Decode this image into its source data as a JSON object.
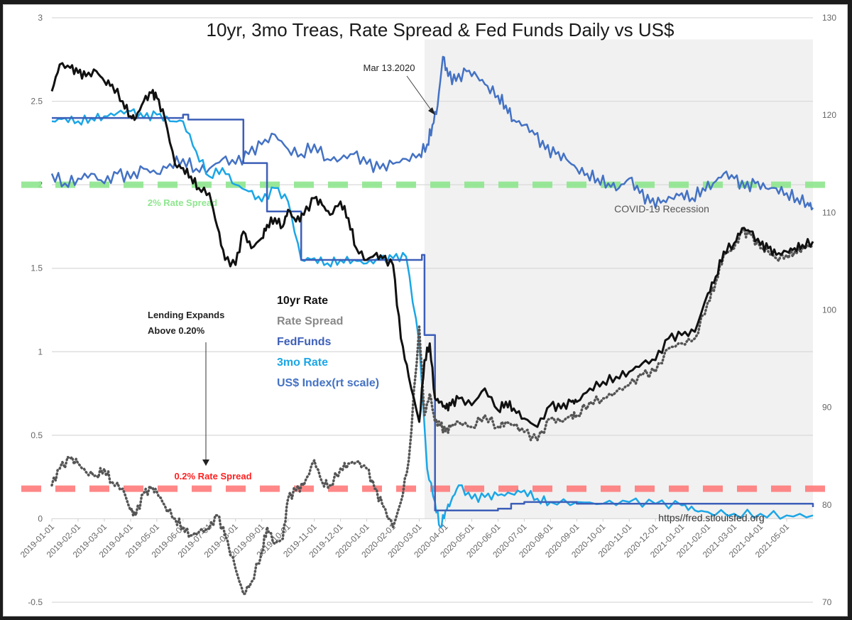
{
  "chart_data": {
    "type": "line",
    "title": "10yr, 3mo Treas, Rate Spread & Fed Funds Daily vs US$",
    "xlabel": "",
    "ylabel_left": "",
    "ylabel_right": "",
    "ylim_left": [
      -0.5,
      3
    ],
    "ylim_right": [
      70,
      130
    ],
    "left_ticks": [
      "3",
      "2.5",
      "2",
      "1.5",
      "1",
      "0.5",
      "0",
      "-0.5"
    ],
    "left_tick_values": [
      3,
      2.5,
      2,
      1.5,
      1,
      0.5,
      0,
      -0.5
    ],
    "right_ticks": [
      "130",
      "120",
      "110",
      "100",
      "90",
      "80",
      "70"
    ],
    "right_tick_values": [
      130,
      120,
      110,
      100,
      90,
      80,
      70
    ],
    "grid": true,
    "x_tick_labels": [
      "2019-01-01",
      "2019-02-01",
      "2019-03-01",
      "2019-04-01",
      "2019-05-01",
      "2019-06-01",
      "2019-07-01",
      "2019-08-01",
      "2019-09-01",
      "2019-10-01",
      "2019-11-01",
      "2019-12-01",
      "2020-01-01",
      "2020-02-01",
      "2020-03-01",
      "2020-04-01",
      "2020-05-01",
      "2020-06-01",
      "2020-07-01",
      "2020-08-01",
      "2020-09-01",
      "2020-10-01",
      "2020-11-01",
      "2020-12-01",
      "2021-01-01",
      "2021-02-01",
      "2021-03-01",
      "2021-04-01",
      "2021-05-01"
    ],
    "x_range_months": [
      0,
      29
    ],
    "recession_shading": {
      "label": "COVID-19 Recession",
      "start_month": 14.2,
      "end_month": 29.0,
      "color": "#f1f1f1"
    },
    "reference_lines": [
      {
        "name": "2% Rate Spread",
        "value": 2.0,
        "color": "#8ee68e",
        "label_color": "#8ee68e"
      },
      {
        "name": "0.2% Rate Spread",
        "value": 0.18,
        "color": "#ff7b7b",
        "label_color": "#ff1f1f"
      }
    ],
    "legend": {
      "placement": "center-left",
      "entries": [
        {
          "label": "10yr Rate",
          "color": "#111111"
        },
        {
          "label": "Rate Spread",
          "color": "#888888"
        },
        {
          "label": "FedFunds",
          "color": "#3d5fb8"
        },
        {
          "label": "3mo Rate",
          "color": "#1ba6e6"
        },
        {
          "label": "US$ Index(rt scale)",
          "color": "#4472c4"
        }
      ]
    },
    "annotations": [
      {
        "text": "Mar 13.2020",
        "x_month": 14.4,
        "y_right": 120.5
      },
      {
        "text": "Lending Expands",
        "text2": "Above 0.20%",
        "x_month": 6.8,
        "y": 0.22
      },
      {
        "text": "https//fred.stlouisfed.org",
        "position": "bottom-right"
      }
    ],
    "series": [
      {
        "name": "10yr Rate",
        "axis": "left",
        "style": "line",
        "color": "#111111",
        "x": [
          0,
          0.3,
          0.7,
          1,
          1.3,
          1.7,
          2,
          2.3,
          2.7,
          3,
          3.2,
          3.5,
          3.8,
          4,
          4.3,
          4.7,
          5,
          5.3,
          5.6,
          6,
          6.3,
          6.6,
          7,
          7.3,
          7.6,
          8,
          8.2,
          8.5,
          8.8,
          9,
          9.3,
          9.6,
          10,
          10.3,
          10.6,
          11,
          11.3,
          11.6,
          12,
          12.3,
          12.6,
          13,
          13.3,
          13.6,
          14,
          14.2,
          14.4,
          14.6,
          14.8,
          15,
          15.2,
          15.5,
          16,
          16.5,
          17,
          17.3,
          17.6,
          18,
          18.5,
          19,
          19.4,
          19.8,
          20,
          20.5,
          21,
          21.5,
          22,
          22.5,
          23,
          23.5,
          24,
          24.5,
          25,
          25.3,
          25.6,
          26,
          26.3,
          26.6,
          27,
          27.3,
          27.6,
          28,
          28.3,
          28.6,
          29
        ],
        "values": [
          2.56,
          2.72,
          2.7,
          2.67,
          2.65,
          2.68,
          2.62,
          2.6,
          2.5,
          2.41,
          2.4,
          2.5,
          2.55,
          2.52,
          2.4,
          2.12,
          2.1,
          2.05,
          1.98,
          1.95,
          1.75,
          1.55,
          1.52,
          1.72,
          1.62,
          1.68,
          1.76,
          1.8,
          1.75,
          1.85,
          1.78,
          1.82,
          1.92,
          1.88,
          1.82,
          1.9,
          1.8,
          1.62,
          1.55,
          1.58,
          1.56,
          1.52,
          1.08,
          0.85,
          0.58,
          0.95,
          1.05,
          0.72,
          0.7,
          0.66,
          0.68,
          0.72,
          0.68,
          0.78,
          0.65,
          0.7,
          0.66,
          0.6,
          0.55,
          0.68,
          0.66,
          0.7,
          0.7,
          0.78,
          0.82,
          0.85,
          0.88,
          0.93,
          0.95,
          1.08,
          1.1,
          1.12,
          1.35,
          1.45,
          1.6,
          1.65,
          1.74,
          1.72,
          1.64,
          1.62,
          1.58,
          1.6,
          1.62,
          1.64,
          1.66
        ]
      },
      {
        "name": "Rate Spread",
        "axis": "left",
        "style": "dotted",
        "color": "#555555",
        "x": [
          0,
          0.3,
          0.7,
          1,
          1.3,
          1.7,
          2,
          2.3,
          2.7,
          3,
          3.2,
          3.5,
          3.8,
          4,
          4.3,
          4.7,
          5,
          5.3,
          5.6,
          6,
          6.3,
          6.6,
          7,
          7.3,
          7.6,
          8,
          8.2,
          8.5,
          8.8,
          9,
          9.3,
          9.6,
          10,
          10.3,
          10.6,
          11,
          11.3,
          11.6,
          12,
          12.3,
          12.6,
          13,
          13.3,
          13.6,
          14,
          14.2,
          14.4,
          14.6,
          14.8,
          15,
          15.2,
          15.5,
          16,
          16.5,
          17,
          17.3,
          17.6,
          18,
          18.5,
          19,
          19.4,
          19.8,
          20,
          20.5,
          21,
          21.5,
          22,
          22.5,
          23,
          23.5,
          24,
          24.5,
          25,
          25.3,
          25.6,
          26,
          26.3,
          26.6,
          27,
          27.3,
          27.6,
          28,
          28.3,
          28.6,
          29
        ],
        "values": [
          0.2,
          0.3,
          0.36,
          0.33,
          0.28,
          0.26,
          0.3,
          0.22,
          0.18,
          0.05,
          0.02,
          0.15,
          0.18,
          0.16,
          0.08,
          0.0,
          -0.05,
          -0.1,
          -0.08,
          -0.06,
          0.02,
          -0.1,
          -0.3,
          -0.45,
          -0.38,
          -0.2,
          -0.05,
          -0.15,
          -0.12,
          0.12,
          0.17,
          0.2,
          0.35,
          0.22,
          0.2,
          0.3,
          0.33,
          0.34,
          0.3,
          0.18,
          0.08,
          -0.05,
          0.1,
          0.35,
          1.15,
          0.62,
          0.75,
          0.58,
          0.56,
          0.52,
          0.55,
          0.58,
          0.55,
          0.62,
          0.55,
          0.58,
          0.56,
          0.52,
          0.47,
          0.6,
          0.58,
          0.62,
          0.62,
          0.7,
          0.72,
          0.76,
          0.8,
          0.86,
          0.88,
          1.02,
          1.05,
          1.08,
          1.3,
          1.42,
          1.58,
          1.62,
          1.72,
          1.7,
          1.62,
          1.6,
          1.56,
          1.58,
          1.6,
          1.62,
          1.64
        ]
      },
      {
        "name": "FedFunds",
        "axis": "left",
        "style": "step",
        "color": "#3d5fb8",
        "x": [
          0,
          4,
          5,
          5.2,
          7,
          7.3,
          7.9,
          8.2,
          9.2,
          9.5,
          14.1,
          14.2,
          14.5,
          14.6,
          15,
          16,
          17,
          17.5,
          18,
          19,
          20,
          29
        ],
        "values": [
          2.4,
          2.4,
          2.42,
          2.39,
          2.39,
          2.13,
          2.13,
          1.84,
          1.84,
          1.55,
          1.58,
          1.1,
          1.1,
          0.05,
          0.05,
          0.05,
          0.06,
          0.09,
          0.1,
          0.1,
          0.09,
          0.07
        ]
      },
      {
        "name": "3mo Rate",
        "axis": "left",
        "style": "line",
        "color": "#1ba6e6",
        "x": [
          0,
          0.5,
          1,
          1.5,
          2,
          2.5,
          3,
          3.5,
          4,
          4.5,
          5,
          5.5,
          6,
          6.5,
          7,
          7.5,
          8,
          8.5,
          9,
          9.5,
          10,
          10.5,
          11,
          11.5,
          12,
          12.5,
          13,
          13.5,
          14,
          14.3,
          14.6,
          14.8,
          15,
          15.2,
          15.5,
          16,
          16.5,
          17,
          17.5,
          18,
          18.5,
          19,
          20,
          21,
          22,
          23,
          24,
          24.5,
          25,
          26,
          27,
          28,
          29
        ],
        "values": [
          2.38,
          2.4,
          2.38,
          2.4,
          2.41,
          2.43,
          2.44,
          2.4,
          2.42,
          2.38,
          2.38,
          2.2,
          2.05,
          2.1,
          2.0,
          1.96,
          1.9,
          1.98,
          1.9,
          1.55,
          1.56,
          1.53,
          1.55,
          1.55,
          1.53,
          1.55,
          1.56,
          1.57,
          1.05,
          0.3,
          0.1,
          -0.05,
          0.05,
          0.1,
          0.2,
          0.12,
          0.13,
          0.14,
          0.15,
          0.17,
          0.12,
          0.1,
          0.1,
          0.09,
          0.1,
          0.09,
          0.08,
          0.05,
          0.04,
          0.03,
          0.03,
          0.02,
          0.02
        ]
      },
      {
        "name": "US$ Index(rt scale)",
        "axis": "right",
        "style": "line",
        "color": "#4472c4",
        "x": [
          0,
          0.5,
          1,
          1.5,
          2,
          2.5,
          3,
          3.5,
          4,
          4.5,
          5,
          5.5,
          6,
          6.5,
          7,
          7.5,
          8,
          8.5,
          9,
          9.5,
          10,
          10.5,
          11,
          11.5,
          12,
          12.5,
          13,
          13.5,
          14,
          14.3,
          14.5,
          14.7,
          14.9,
          15.1,
          15.4,
          15.8,
          16.2,
          16.6,
          17,
          17.3,
          17.6,
          18,
          18.4,
          18.8,
          19.2,
          19.6,
          20,
          20.4,
          20.8,
          21.2,
          21.6,
          22,
          22.4,
          22.8,
          23.2,
          23.6,
          24,
          24.4,
          24.8,
          25.2,
          25.6,
          26,
          26.4,
          26.8,
          27.2,
          27.6,
          28,
          28.4,
          28.8,
          29
        ],
        "values": [
          114,
          113,
          113.5,
          114,
          113,
          114,
          113.5,
          114.5,
          114,
          115,
          115.5,
          114.5,
          114.5,
          115.5,
          115,
          116,
          117,
          118,
          116.5,
          116,
          117,
          115.5,
          115.5,
          116,
          115,
          114.5,
          115,
          115.5,
          116,
          117,
          119,
          121,
          126,
          124,
          123.5,
          124.5,
          124,
          123,
          122,
          121,
          119.5,
          119,
          118,
          116.5,
          116,
          115.5,
          114.5,
          114,
          113.5,
          113,
          112.5,
          113.5,
          112,
          111,
          111,
          111.5,
          112,
          111.5,
          112.5,
          113,
          114,
          113.5,
          112.5,
          113,
          112.5,
          112.5,
          112,
          111.5,
          111,
          110.5
        ]
      }
    ]
  }
}
